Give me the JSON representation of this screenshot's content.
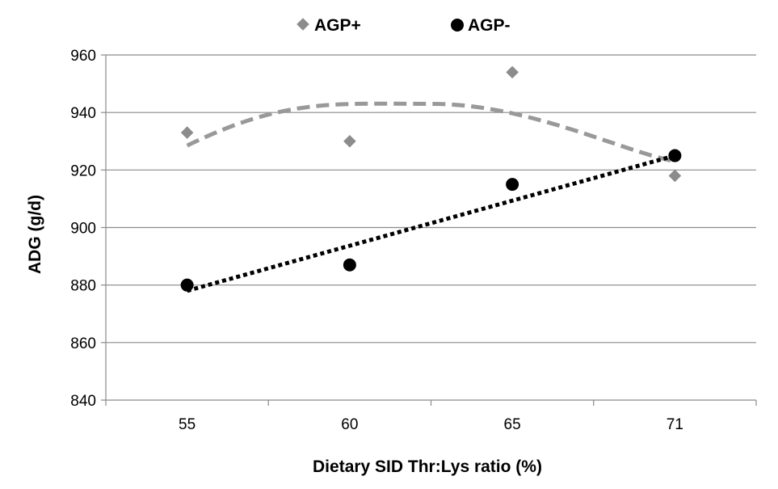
{
  "chart_data": {
    "type": "scatter",
    "title": "",
    "xlabel": "Dietary SID Thr:Lys ratio (%)",
    "ylabel": "ADG (g/d)",
    "categories": [
      "55",
      "60",
      "65",
      "71"
    ],
    "ylim": [
      840,
      960
    ],
    "yticks": [
      840,
      860,
      880,
      900,
      920,
      940,
      960
    ],
    "grid": true,
    "legend_position": "top-center",
    "series": [
      {
        "name": "AGP+",
        "marker": "diamond",
        "color": "#8c8c8c",
        "values": [
          933,
          930,
          954,
          918
        ],
        "trendline": {
          "style": "dashed",
          "kind": "quadratic",
          "values": [
            928.5,
            943,
            941,
            923
          ]
        }
      },
      {
        "name": "AGP-",
        "marker": "circle",
        "color": "#000000",
        "values": [
          880,
          887,
          915,
          925
        ],
        "trendline": {
          "style": "dotted",
          "kind": "linear",
          "values": [
            878,
            925
          ]
        }
      }
    ]
  }
}
